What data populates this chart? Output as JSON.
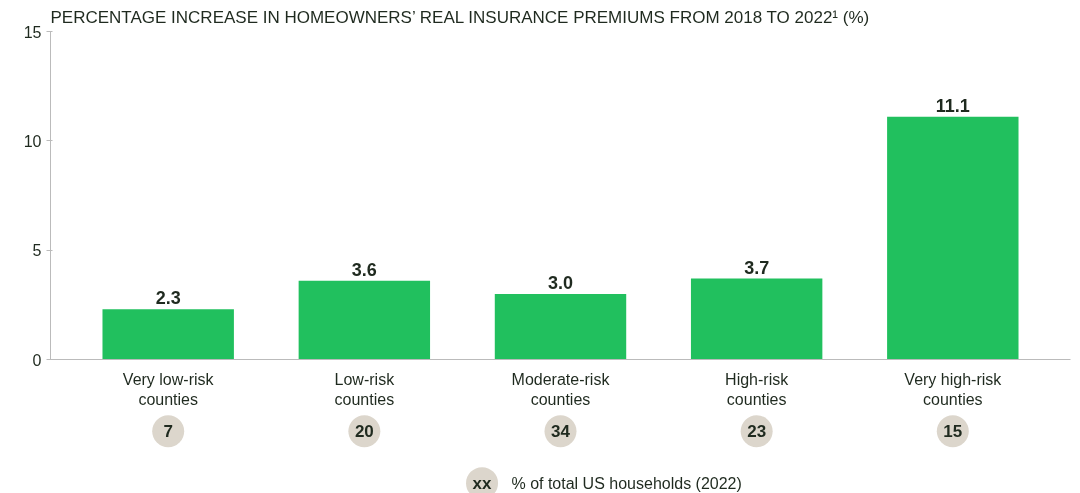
{
  "chart_data": {
    "type": "bar",
    "title": "PERCENTAGE INCREASE IN HOMEOWNERS’ REAL INSURANCE PREMIUMS FROM 2018 TO 2022¹ (%)",
    "categories": [
      "Very low-risk\ncounties",
      "Low-risk\ncounties",
      "Moderate-risk\ncounties",
      "High-risk\ncounties",
      "Very high-risk\ncounties"
    ],
    "values": [
      2.3,
      3.6,
      3.0,
      3.7,
      11.1
    ],
    "value_labels": [
      "2.3",
      "3.6",
      "3.0",
      "3.7",
      "11.1"
    ],
    "color": "#21c05e",
    "ylim": [
      0,
      15
    ],
    "yticks": [
      0,
      5,
      10,
      15
    ],
    "grid": false,
    "annotations": [
      "7",
      "20",
      "34",
      "23",
      "15",
      "xx",
      "% of total US households (2022)"
    ]
  }
}
